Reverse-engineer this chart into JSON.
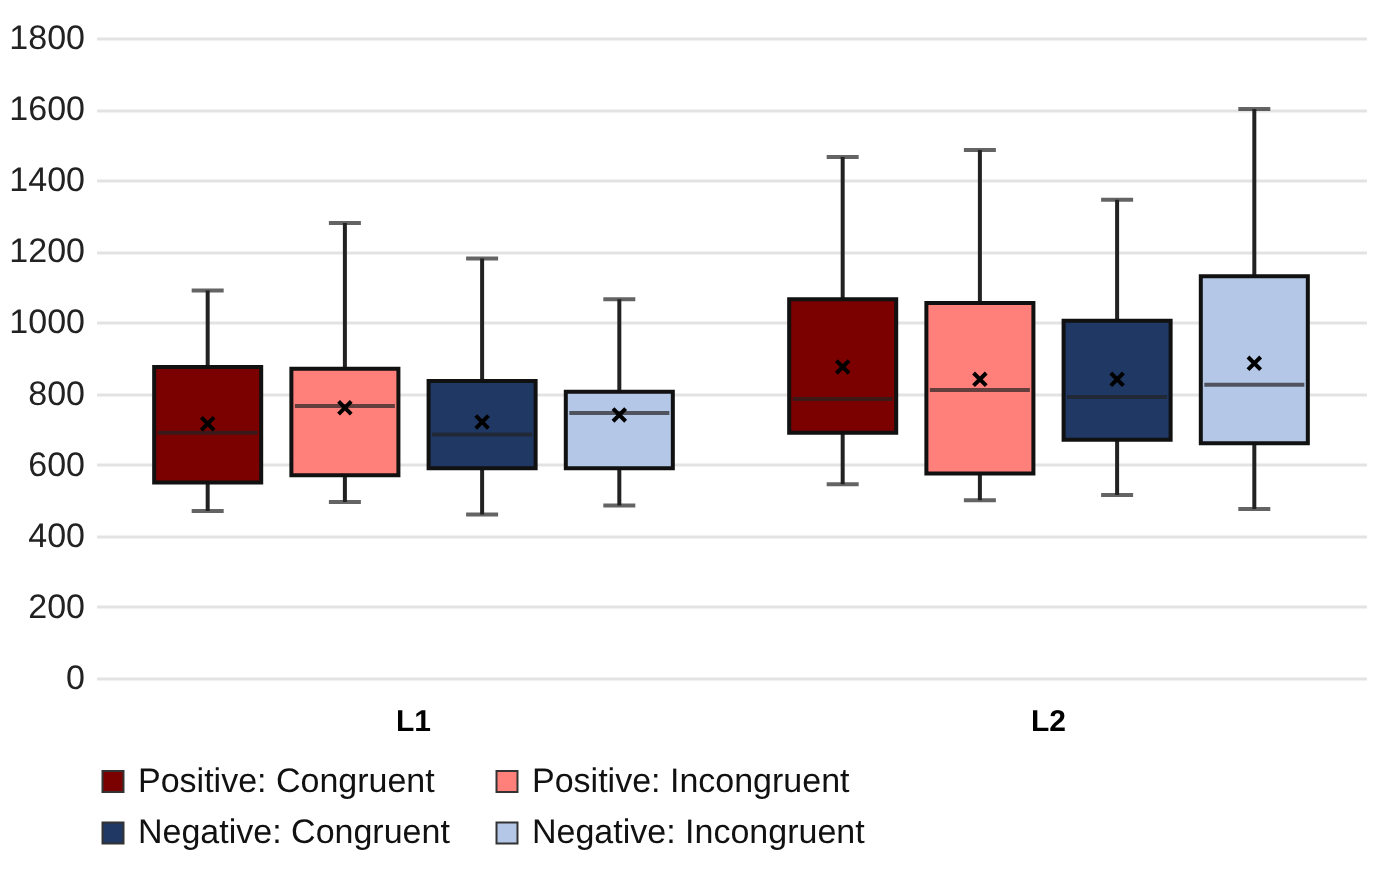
{
  "chart_data": {
    "type": "box",
    "categories": [
      "L1",
      "L2"
    ],
    "series": [
      {
        "name": "Positive: Congruent",
        "color": "#7b0000",
        "boxes": [
          {
            "low": 470,
            "q1": 550,
            "median": 690,
            "q3": 875,
            "high": 1090,
            "mean": 715
          },
          {
            "low": 545,
            "q1": 690,
            "median": 785,
            "q3": 1065,
            "high": 1465,
            "mean": 875
          }
        ]
      },
      {
        "name": "Positive: Incongruent",
        "color": "#ff7f7b",
        "boxes": [
          {
            "low": 495,
            "q1": 570,
            "median": 765,
            "q3": 870,
            "high": 1280,
            "mean": 760
          },
          {
            "low": 500,
            "q1": 575,
            "median": 810,
            "q3": 1055,
            "high": 1485,
            "mean": 840
          }
        ]
      },
      {
        "name": "Negative: Congruent",
        "color": "#1f3864",
        "boxes": [
          {
            "low": 460,
            "q1": 590,
            "median": 685,
            "q3": 835,
            "high": 1180,
            "mean": 720
          },
          {
            "low": 515,
            "q1": 670,
            "median": 790,
            "q3": 1005,
            "high": 1345,
            "mean": 840
          }
        ]
      },
      {
        "name": "Negative: Incongruent",
        "color": "#b4c7e7",
        "boxes": [
          {
            "low": 485,
            "q1": 590,
            "median": 745,
            "q3": 805,
            "high": 1065,
            "mean": 740
          },
          {
            "low": 475,
            "q1": 660,
            "median": 825,
            "q3": 1130,
            "high": 1600,
            "mean": 885
          }
        ]
      }
    ],
    "ylim": [
      0,
      1800
    ],
    "yticks": [
      0,
      200,
      400,
      600,
      800,
      1000,
      1200,
      1400,
      1600,
      1800
    ],
    "grid": "y",
    "legend": "bottom"
  }
}
